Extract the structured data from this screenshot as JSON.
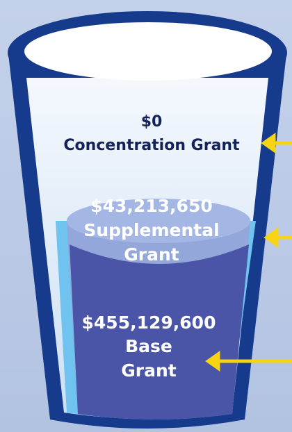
{
  "grants": [
    {
      "amount": "$0",
      "lines": [
        "Concentration Grant"
      ]
    },
    {
      "amount": "$43,213,650",
      "lines": [
        "Supplemental",
        "Grant"
      ]
    },
    {
      "amount": "$455,129,600",
      "lines": [
        "Base",
        "Grant"
      ]
    }
  ]
}
